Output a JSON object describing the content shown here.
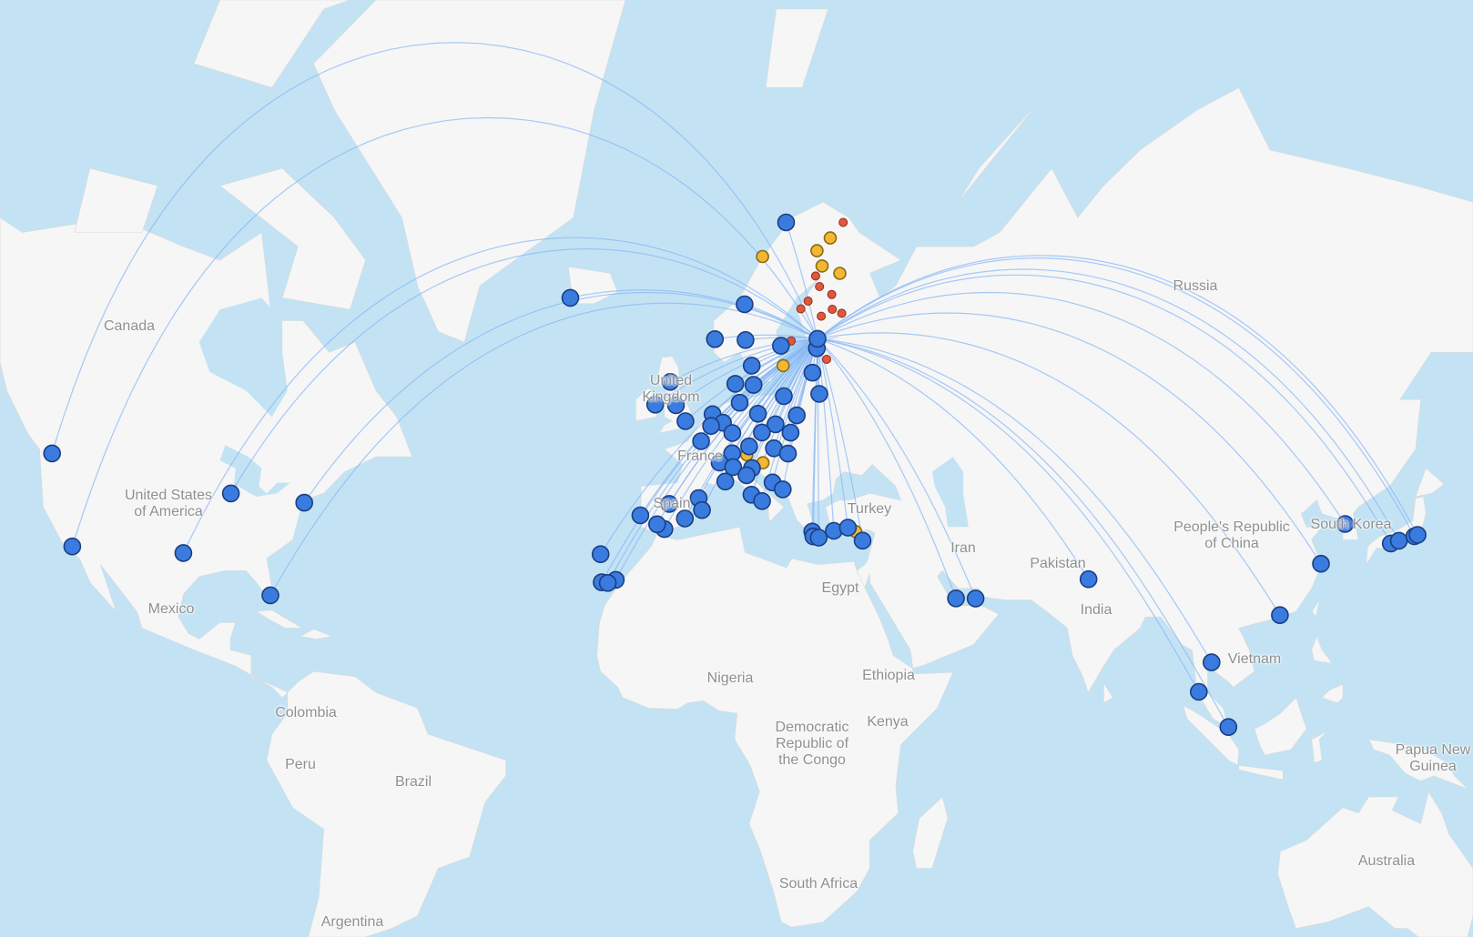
{
  "colors": {
    "water": "#c3e3f4",
    "land": "#f6f6f6",
    "border": "#d9d9d9",
    "route": "#8ab8f5",
    "marker_large": "#3a7be0",
    "marker_large_stroke": "#1b3f80",
    "marker_medium": "#f2b733",
    "marker_medium_stroke": "#8c6a12",
    "marker_small": "#e2563d",
    "marker_small_stroke": "#8a2e1e"
  },
  "labels": {
    "canada": "Canada",
    "usa_1": "United States",
    "usa_2": "of America",
    "mexico": "Mexico",
    "colombia": "Colombia",
    "peru": "Peru",
    "brazil": "Brazil",
    "argentina": "Argentina",
    "uk_1": "United",
    "uk_2": "Kingdom",
    "france": "France",
    "spain": "Spain",
    "turkey": "Turkey",
    "iran": "Iran",
    "pakistan": "Pakistan",
    "india": "India",
    "egypt": "Egypt",
    "nigeria": "Nigeria",
    "ethiopia": "Ethiopia",
    "kenya": "Kenya",
    "drc_1": "Democratic",
    "drc_2": "Republic of",
    "drc_3": "the Congo",
    "south_africa": "South Africa",
    "russia": "Russia",
    "china_1": "People's Republic",
    "china_2": "of China",
    "south_korea": "South Korea",
    "vietnam": "Vietnam",
    "png_1": "Papua New",
    "png_2": "Guinea",
    "australia": "Australia"
  },
  "hub": {
    "lat": 60.32,
    "lon": 24.96,
    "tier": "large"
  },
  "markers": [
    {
      "lat": 47.45,
      "lon": -122.3,
      "tier": "large"
    },
    {
      "lat": 33.94,
      "lon": -118.4,
      "tier": "large"
    },
    {
      "lat": 41.98,
      "lon": -87.9,
      "tier": "large"
    },
    {
      "lat": 40.64,
      "lon": -73.78,
      "tier": "large"
    },
    {
      "lat": 32.9,
      "lon": -97.04,
      "tier": "large"
    },
    {
      "lat": 25.8,
      "lon": -80.3,
      "tier": "large"
    },
    {
      "lat": 64.0,
      "lon": -22.6,
      "tier": "large"
    },
    {
      "lat": 69.68,
      "lon": 18.92,
      "tier": "large"
    },
    {
      "lat": 63.45,
      "lon": 10.92,
      "tier": "large"
    },
    {
      "lat": 60.2,
      "lon": 11.1,
      "tier": "large"
    },
    {
      "lat": 60.29,
      "lon": 5.22,
      "tier": "large"
    },
    {
      "lat": 59.65,
      "lon": 17.92,
      "tier": "large"
    },
    {
      "lat": 59.41,
      "lon": 24.83,
      "tier": "large"
    },
    {
      "lat": 57.66,
      "lon": 12.29,
      "tier": "large"
    },
    {
      "lat": 55.74,
      "lon": 9.15,
      "tier": "large"
    },
    {
      "lat": 55.62,
      "lon": 12.65,
      "tier": "large"
    },
    {
      "lat": 54.38,
      "lon": 18.47,
      "tier": "large"
    },
    {
      "lat": 56.92,
      "lon": 23.97,
      "tier": "large"
    },
    {
      "lat": 54.63,
      "lon": 25.29,
      "tier": "large"
    },
    {
      "lat": 55.95,
      "lon": -3.36,
      "tier": "large"
    },
    {
      "lat": 53.35,
      "lon": -2.27,
      "tier": "large"
    },
    {
      "lat": 53.42,
      "lon": -6.27,
      "tier": "large"
    },
    {
      "lat": 51.47,
      "lon": -0.45,
      "tier": "large"
    },
    {
      "lat": 52.31,
      "lon": 4.76,
      "tier": "large"
    },
    {
      "lat": 51.29,
      "lon": 6.77,
      "tier": "large"
    },
    {
      "lat": 50.9,
      "lon": 4.48,
      "tier": "large"
    },
    {
      "lat": 53.63,
      "lon": 9.99,
      "tier": "large"
    },
    {
      "lat": 52.36,
      "lon": 13.5,
      "tier": "large"
    },
    {
      "lat": 51.1,
      "lon": 16.88,
      "tier": "large"
    },
    {
      "lat": 52.17,
      "lon": 20.97,
      "tier": "large"
    },
    {
      "lat": 50.03,
      "lon": 8.57,
      "tier": "large"
    },
    {
      "lat": 50.1,
      "lon": 14.26,
      "tier": "large"
    },
    {
      "lat": 50.08,
      "lon": 19.78,
      "tier": "large"
    },
    {
      "lat": 49.01,
      "lon": 2.55,
      "tier": "large"
    },
    {
      "lat": 48.35,
      "lon": 11.79,
      "tier": "large"
    },
    {
      "lat": 48.11,
      "lon": 16.57,
      "tier": "large"
    },
    {
      "lat": 47.43,
      "lon": 19.26,
      "tier": "large"
    },
    {
      "lat": 47.46,
      "lon": 8.55,
      "tier": "large"
    },
    {
      "lat": 46.24,
      "lon": 6.11,
      "tier": "large"
    },
    {
      "lat": 45.63,
      "lon": 8.72,
      "tier": "large"
    },
    {
      "lat": 45.5,
      "lon": 12.35,
      "tier": "large"
    },
    {
      "lat": 44.53,
      "lon": 11.29,
      "tier": "large"
    },
    {
      "lat": 43.66,
      "lon": 7.21,
      "tier": "large"
    },
    {
      "lat": 43.54,
      "lon": 16.3,
      "tier": "large"
    },
    {
      "lat": 42.56,
      "lon": 18.27,
      "tier": "large"
    },
    {
      "lat": 41.8,
      "lon": 12.25,
      "tier": "large"
    },
    {
      "lat": 40.88,
      "lon": 14.29,
      "tier": "large"
    },
    {
      "lat": 41.3,
      "lon": 2.08,
      "tier": "large"
    },
    {
      "lat": 39.55,
      "lon": 2.73,
      "tier": "large"
    },
    {
      "lat": 40.47,
      "lon": -3.57,
      "tier": "large"
    },
    {
      "lat": 38.28,
      "lon": -0.56,
      "tier": "large"
    },
    {
      "lat": 36.67,
      "lon": -4.5,
      "tier": "large"
    },
    {
      "lat": 37.42,
      "lon": -5.9,
      "tier": "large"
    },
    {
      "lat": 38.77,
      "lon": -9.13,
      "tier": "large"
    },
    {
      "lat": 32.7,
      "lon": -16.77,
      "tier": "large"
    },
    {
      "lat": 28.45,
      "lon": -13.86,
      "tier": "large"
    },
    {
      "lat": 28.04,
      "lon": -16.57,
      "tier": "large"
    },
    {
      "lat": 27.93,
      "lon": -15.39,
      "tier": "large"
    },
    {
      "lat": 36.3,
      "lon": 23.94,
      "tier": "large"
    },
    {
      "lat": 35.53,
      "lon": 24.15,
      "tier": "large"
    },
    {
      "lat": 35.34,
      "lon": 25.18,
      "tier": "large"
    },
    {
      "lat": 36.4,
      "lon": 28.09,
      "tier": "large"
    },
    {
      "lat": 36.9,
      "lon": 30.8,
      "tier": "large"
    },
    {
      "lat": 34.87,
      "lon": 33.62,
      "tier": "large"
    },
    {
      "lat": 25.27,
      "lon": 51.6,
      "tier": "large"
    },
    {
      "lat": 25.25,
      "lon": 55.36,
      "tier": "large"
    },
    {
      "lat": 28.56,
      "lon": 77.1,
      "tier": "large"
    },
    {
      "lat": 13.69,
      "lon": 100.75,
      "tier": "large"
    },
    {
      "lat": 8.11,
      "lon": 98.3,
      "tier": "large"
    },
    {
      "lat": 1.36,
      "lon": 103.99,
      "tier": "large"
    },
    {
      "lat": 22.31,
      "lon": 113.91,
      "tier": "large"
    },
    {
      "lat": 31.14,
      "lon": 121.8,
      "tier": "large"
    },
    {
      "lat": 37.46,
      "lon": 126.44,
      "tier": "large"
    },
    {
      "lat": 34.43,
      "lon": 135.23,
      "tier": "large"
    },
    {
      "lat": 34.86,
      "lon": 136.8,
      "tier": "large"
    },
    {
      "lat": 35.55,
      "lon": 139.78,
      "tier": "large"
    },
    {
      "lat": 35.77,
      "lon": 140.39,
      "tier": "large"
    },
    {
      "lat": 67.27,
      "lon": 14.37,
      "tier": "medium"
    },
    {
      "lat": 67.7,
      "lon": 24.85,
      "tier": "medium"
    },
    {
      "lat": 68.61,
      "lon": 27.41,
      "tier": "medium"
    },
    {
      "lat": 66.56,
      "lon": 25.83,
      "tier": "medium"
    },
    {
      "lat": 65.99,
      "lon": 29.24,
      "tier": "medium"
    },
    {
      "lat": 57.66,
      "lon": 18.35,
      "tier": "medium"
    },
    {
      "lat": 47.26,
      "lon": 11.34,
      "tier": "medium"
    },
    {
      "lat": 46.22,
      "lon": 14.46,
      "tier": "medium"
    },
    {
      "lat": 36.3,
      "lon": 32.3,
      "tier": "medium"
    },
    {
      "lat": 69.68,
      "lon": 29.89,
      "tier": "small"
    },
    {
      "lat": 65.78,
      "lon": 24.58,
      "tier": "small"
    },
    {
      "lat": 64.93,
      "lon": 25.35,
      "tier": "small"
    },
    {
      "lat": 64.28,
      "lon": 27.69,
      "tier": "small"
    },
    {
      "lat": 63.72,
      "lon": 23.14,
      "tier": "small"
    },
    {
      "lat": 63.05,
      "lon": 21.76,
      "tier": "small"
    },
    {
      "lat": 62.4,
      "lon": 25.68,
      "tier": "small"
    },
    {
      "lat": 63.01,
      "lon": 27.8,
      "tier": "small"
    },
    {
      "lat": 62.66,
      "lon": 29.61,
      "tier": "small"
    },
    {
      "lat": 60.12,
      "lon": 19.9,
      "tier": "small"
    },
    {
      "lat": 58.3,
      "lon": 26.7,
      "tier": "small"
    }
  ]
}
